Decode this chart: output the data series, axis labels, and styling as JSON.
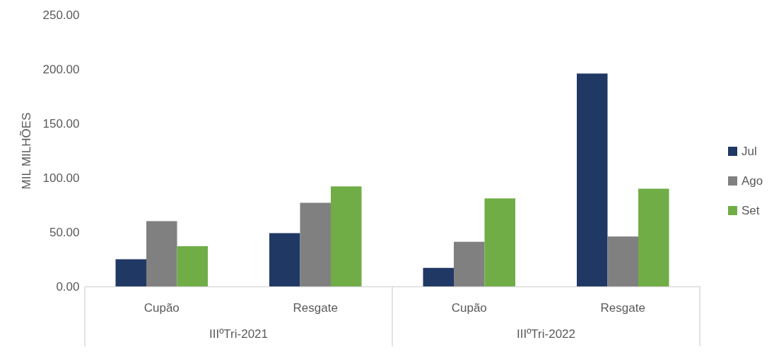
{
  "chart_data": {
    "type": "bar",
    "ylabel": "MIL MILHÕES",
    "categories": [
      "Cupão",
      "Resgate",
      "Cupão",
      "Resgate"
    ],
    "annotations": [
      "IIIºTri-2021",
      "IIIºTri-2022"
    ],
    "series": [
      {
        "name": "Jul",
        "color": "#203864",
        "values": [
          25,
          49,
          17,
          196
        ]
      },
      {
        "name": "Ago",
        "color": "#808080",
        "values": [
          60,
          77,
          41,
          46
        ]
      },
      {
        "name": "Set",
        "color": "#70ad47",
        "values": [
          37,
          92,
          81,
          90
        ]
      }
    ],
    "ylim": [
      0,
      250
    ],
    "yticks": [
      {
        "value": 0,
        "label": "0.00"
      },
      {
        "value": 50,
        "label": "50.00"
      },
      {
        "value": 100,
        "label": "100.00"
      },
      {
        "value": 150,
        "label": "150.00"
      },
      {
        "value": 200,
        "label": "200.00"
      },
      {
        "value": 250,
        "label": "250.00"
      }
    ],
    "grid": false,
    "legend": "right"
  }
}
